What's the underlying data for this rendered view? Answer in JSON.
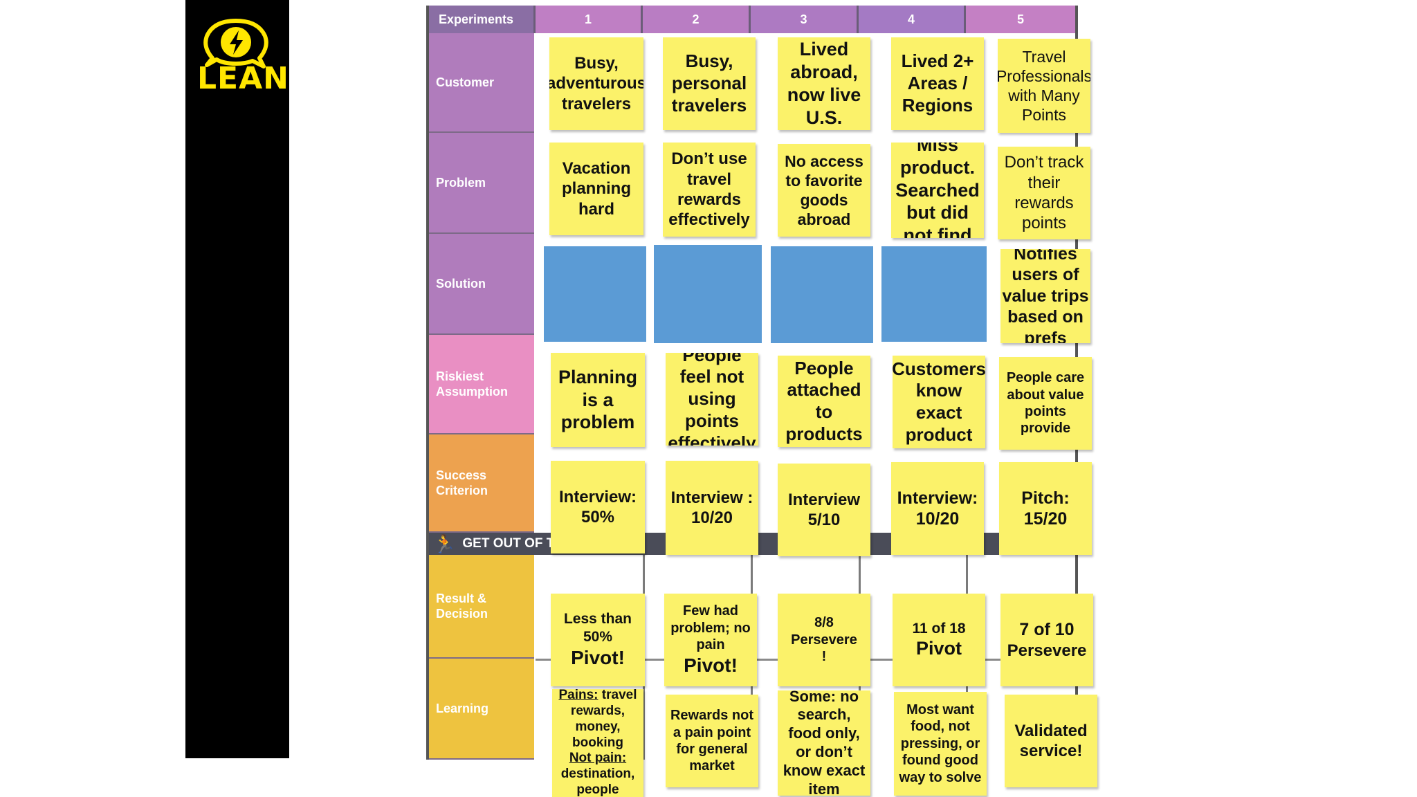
{
  "logo": {
    "text": "LEAN",
    "icon": "lightning-bolt-icon",
    "color": "#ffe600"
  },
  "board": {
    "header_label": "Experiments",
    "experiments": [
      "1",
      "2",
      "3",
      "4",
      "5"
    ],
    "rows": {
      "customer": "Customer",
      "problem": "Problem",
      "solution": "Solution",
      "riskiest": "Riskiest Assumption",
      "success": "Success Criterion",
      "result": "Result & Decision",
      "learning": "Learning"
    },
    "get_out": "GET OUT OF T"
  },
  "notes": {
    "customer": [
      "Busy, adventurous travelers",
      "Busy, personal travelers",
      "Lived abroad, now live U.S.",
      "Lived 2+ Areas / Regions",
      "Travel Professionals with Many Points"
    ],
    "problem": [
      "Vacation planning hard",
      "Don’t use travel rewards effectively",
      "No access to favorite goods abroad",
      "Miss product. Searched but did not find",
      "Don’t track their rewards points"
    ],
    "solution5": "Notifies users of value trips based on prefs",
    "riskiest": [
      "Planning is a problem",
      "People feel not using points effectively",
      "People attached to products",
      "Customers know exact product",
      "People care about value points provide"
    ],
    "success": [
      "Interview: 50%",
      "Interview : 10/20",
      "Interview 5/10",
      "Interview: 10/20",
      "Pitch: 15/20"
    ],
    "result": [
      {
        "line1": "Less than 50%",
        "decision": "Pivot!"
      },
      {
        "line1": "Few had problem; no pain",
        "decision": "Pivot!"
      },
      {
        "line1": "8/8",
        "decision": "Persevere !"
      },
      {
        "line1": "11 of 18",
        "decision": "Pivot"
      },
      {
        "line1": "7 of 10",
        "decision": "Persevere"
      }
    ],
    "learning1": {
      "pains_label": "Pains:",
      "pains": "travel rewards, money, booking",
      "notpain_label": "Not pain:",
      "notpain": "destination, people"
    },
    "learning": [
      "Rewards not a pain point for general market",
      "Some: no search, food only, or don’t know exact item",
      "Most want food, not pressing, or found good way to solve",
      "Validated service!"
    ]
  },
  "colors": {
    "purple_header": "#b77fbf",
    "pink": "#e88fc2",
    "orange": "#eea04e",
    "gold": "#efc23d",
    "sticky": "#fbf26a",
    "blue_sticky": "#5b9bd5"
  }
}
